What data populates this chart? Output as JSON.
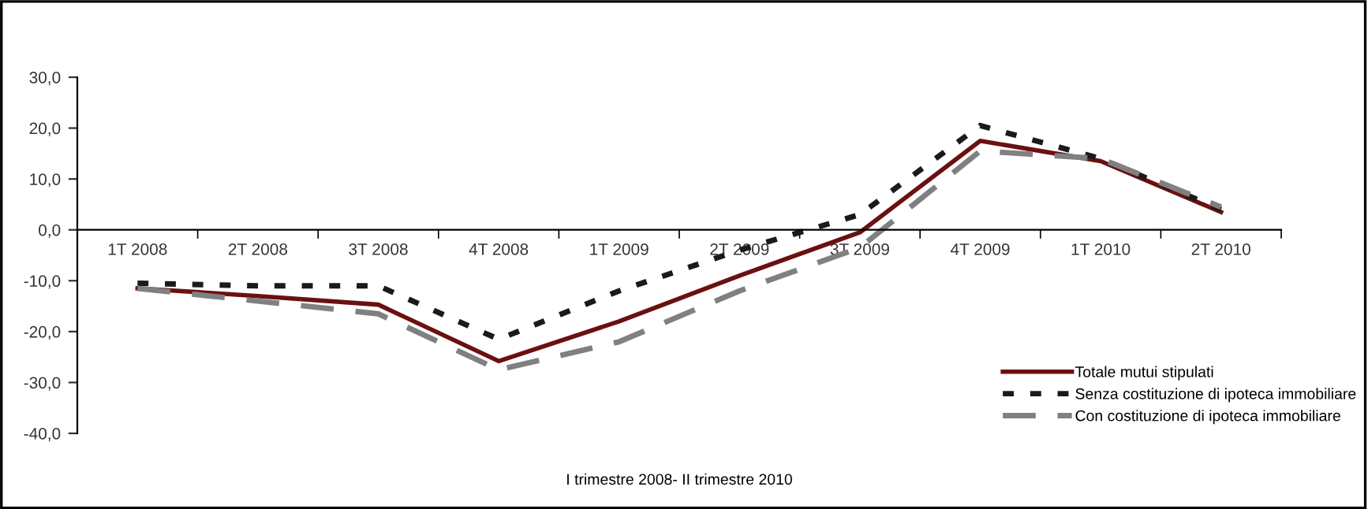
{
  "chart_data": {
    "type": "line",
    "xlabel": "I trimestre 2008- II trimestre 2010",
    "categories": [
      "1T 2008",
      "2T 2008",
      "3T 2008",
      "4T 2008",
      "1T 2009",
      "2T 2009",
      "3T 2009",
      "4T 2009",
      "1T 2010",
      "2T 2010"
    ],
    "series": [
      {
        "name": "Totale mutui stipulati",
        "color": "#6b1010",
        "line_style": "solid",
        "values": [
          -11.5,
          -13.0,
          -14.7,
          -25.8,
          -18.0,
          -9.0,
          -0.5,
          17.5,
          13.5,
          3.5
        ]
      },
      {
        "name": "Senza costituzione di ipoteca immobiliare",
        "color": "#1a1a1a",
        "line_style": "dotted",
        "values": [
          -10.5,
          -11.0,
          -11.0,
          -21.5,
          -12.0,
          -4.0,
          3.0,
          20.5,
          14.0,
          4.0
        ]
      },
      {
        "name": "Con costituzione di ipoteca immobiliare",
        "color": "#808080",
        "line_style": "dashed",
        "values": [
          -11.5,
          -14.0,
          -16.5,
          -27.5,
          -22.0,
          -12.0,
          -3.5,
          15.5,
          14.0,
          4.5
        ]
      }
    ],
    "ylim": [
      -40,
      30
    ],
    "yticks": [
      {
        "value": -40,
        "label": "-40,0"
      },
      {
        "value": -30,
        "label": "-30,0"
      },
      {
        "value": -20,
        "label": "-20,0"
      },
      {
        "value": -10,
        "label": "-10,0"
      },
      {
        "value": 0,
        "label": "0,0"
      },
      {
        "value": 10,
        "label": "10,0"
      },
      {
        "value": 20,
        "label": "20,0"
      },
      {
        "value": 30,
        "label": "30,0"
      }
    ],
    "grid": false,
    "legend": "bottom right",
    "marker": "none"
  }
}
